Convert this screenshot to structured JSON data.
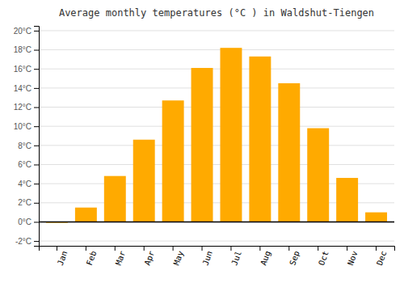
{
  "chart_data": {
    "type": "bar",
    "title": "Average monthly temperatures (°C ) in Waldshut-Tiengen",
    "categories": [
      "Jan",
      "Feb",
      "Mar",
      "Apr",
      "May",
      "Jun",
      "Jul",
      "Aug",
      "Sep",
      "Oct",
      "Nov",
      "Dec"
    ],
    "values": [
      -0.1,
      1.5,
      4.8,
      8.6,
      12.7,
      16.1,
      18.2,
      17.3,
      14.5,
      9.8,
      4.6,
      1.0
    ],
    "color": "#FFAA00",
    "ylim": [
      -2.5,
      20.5
    ],
    "yticks": [
      {
        "value": -2,
        "label": "-2°C"
      },
      {
        "value": 0,
        "label": "0°C"
      },
      {
        "value": 2,
        "label": "2°C"
      },
      {
        "value": 4,
        "label": "4°C"
      },
      {
        "value": 6,
        "label": "6°C"
      },
      {
        "value": 8,
        "label": "8°C"
      },
      {
        "value": 10,
        "label": "10°C"
      },
      {
        "value": 12,
        "label": "12°C"
      },
      {
        "value": 14,
        "label": "14°C"
      },
      {
        "value": 16,
        "label": "16°C"
      },
      {
        "value": 18,
        "label": "18°C"
      },
      {
        "value": 20,
        "label": "20°C"
      }
    ],
    "grid": true
  }
}
